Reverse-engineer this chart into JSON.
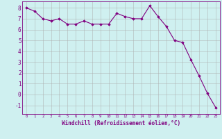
{
  "x": [
    0,
    1,
    2,
    3,
    4,
    5,
    6,
    7,
    8,
    9,
    10,
    11,
    12,
    13,
    14,
    15,
    16,
    17,
    18,
    19,
    20,
    21,
    22,
    23
  ],
  "y": [
    8.0,
    7.7,
    7.0,
    6.8,
    7.0,
    6.5,
    6.5,
    6.8,
    6.5,
    6.5,
    6.5,
    7.5,
    7.2,
    7.0,
    7.0,
    8.2,
    7.2,
    6.3,
    5.0,
    4.8,
    3.2,
    1.7,
    0.1,
    -1.2
  ],
  "line_color": "#800080",
  "marker": "D",
  "marker_size": 1.8,
  "linewidth": 0.8,
  "bg_color": "#cff0f0",
  "grid_color": "#aaaaaa",
  "xlabel": "Windchill (Refroidissement éolien,°C)",
  "xlabel_color": "#800080",
  "tick_color": "#800080",
  "ylim": [
    -1.8,
    8.6
  ],
  "xlim": [
    -0.5,
    23.5
  ],
  "yticks": [
    -1,
    0,
    1,
    2,
    3,
    4,
    5,
    6,
    7,
    8
  ],
  "xticks": [
    0,
    1,
    2,
    3,
    4,
    5,
    6,
    7,
    8,
    9,
    10,
    11,
    12,
    13,
    14,
    15,
    16,
    17,
    18,
    19,
    20,
    21,
    22,
    23
  ]
}
